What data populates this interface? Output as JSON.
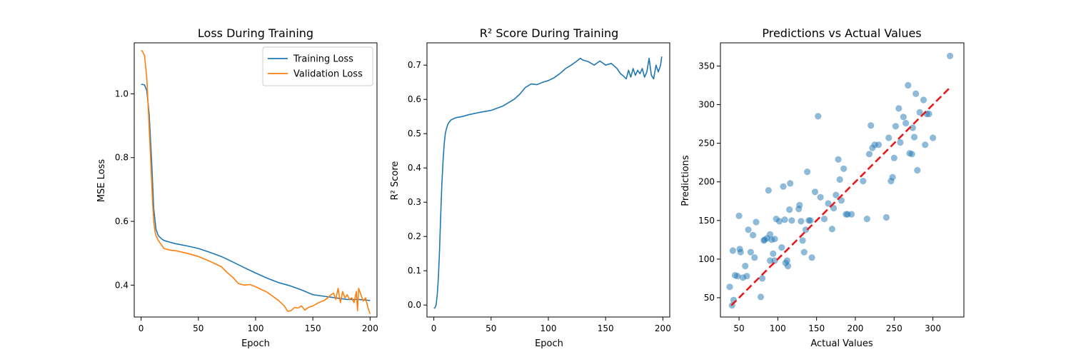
{
  "chart_data": [
    {
      "type": "line",
      "title": "Loss During Training",
      "xlabel": "Epoch",
      "ylabel": "MSE Loss",
      "xlim": [
        -6,
        206
      ],
      "ylim": [
        0.3,
        1.16
      ],
      "xticks": [
        0,
        50,
        100,
        150,
        200
      ],
      "xtick_labels": [
        "0",
        "50",
        "100",
        "150",
        "200"
      ],
      "yticks": [
        0.4,
        0.6,
        0.8,
        1.0
      ],
      "ytick_labels": [
        "0.4",
        "0.6",
        "0.8",
        "1.0"
      ],
      "grid": false,
      "legend": "top-right",
      "series": [
        {
          "name": "Training Loss",
          "color": "#1f77b4",
          "x": [
            0,
            3,
            5,
            7,
            9,
            11,
            13,
            15,
            18,
            20,
            25,
            30,
            40,
            50,
            60,
            70,
            80,
            90,
            100,
            110,
            120,
            130,
            140,
            150,
            160,
            170,
            180,
            190,
            200
          ],
          "y": [
            1.03,
            1.028,
            1.01,
            0.94,
            0.8,
            0.64,
            0.575,
            0.555,
            0.545,
            0.54,
            0.535,
            0.53,
            0.523,
            0.515,
            0.503,
            0.49,
            0.473,
            0.455,
            0.438,
            0.422,
            0.408,
            0.398,
            0.385,
            0.37,
            0.365,
            0.36,
            0.355,
            0.355,
            0.352
          ]
        },
        {
          "name": "Validation Loss",
          "color": "#ff7f0e",
          "x": [
            0,
            1,
            3,
            5,
            7,
            9,
            10,
            11,
            12,
            13,
            15,
            18,
            20,
            25,
            30,
            40,
            50,
            60,
            70,
            75,
            80,
            85,
            90,
            95,
            100,
            110,
            115,
            120,
            125,
            128,
            131,
            134,
            137,
            140,
            143,
            146,
            150,
            155,
            160,
            163,
            166,
            168,
            170,
            172,
            174,
            176,
            178,
            180,
            182,
            184,
            186,
            188,
            189,
            190,
            192,
            194,
            196,
            198,
            200
          ],
          "y": [
            1.135,
            1.135,
            1.12,
            1.05,
            0.9,
            0.74,
            0.66,
            0.6,
            0.57,
            0.555,
            0.54,
            0.525,
            0.515,
            0.51,
            0.508,
            0.5,
            0.49,
            0.475,
            0.458,
            0.44,
            0.425,
            0.405,
            0.4,
            0.402,
            0.395,
            0.378,
            0.365,
            0.352,
            0.335,
            0.318,
            0.32,
            0.33,
            0.328,
            0.335,
            0.322,
            0.33,
            0.335,
            0.345,
            0.352,
            0.36,
            0.37,
            0.375,
            0.355,
            0.39,
            0.345,
            0.38,
            0.36,
            0.37,
            0.355,
            0.36,
            0.345,
            0.38,
            0.32,
            0.39,
            0.37,
            0.35,
            0.36,
            0.33,
            0.31
          ]
        }
      ]
    },
    {
      "type": "line",
      "title": "R² Score During Training",
      "xlabel": "Epoch",
      "ylabel": "R² Score",
      "xlim": [
        -6,
        206
      ],
      "ylim": [
        -0.035,
        0.765
      ],
      "xticks": [
        0,
        50,
        100,
        150,
        200
      ],
      "xtick_labels": [
        "0",
        "50",
        "100",
        "150",
        "200"
      ],
      "yticks": [
        0.0,
        0.1,
        0.2,
        0.3,
        0.4,
        0.5,
        0.6,
        0.7
      ],
      "ytick_labels": [
        "0.0",
        "0.1",
        "0.2",
        "0.3",
        "0.4",
        "0.5",
        "0.6",
        "0.7"
      ],
      "grid": false,
      "series": [
        {
          "color": "#1f77b4",
          "x": [
            0,
            1,
            2,
            3,
            4,
            5,
            6,
            7,
            8,
            9,
            10,
            11,
            12,
            13,
            15,
            18,
            20,
            25,
            30,
            40,
            50,
            60,
            70,
            75,
            80,
            85,
            90,
            95,
            100,
            105,
            110,
            115,
            120,
            125,
            128,
            130,
            135,
            140,
            145,
            150,
            155,
            160,
            163,
            165,
            168,
            170,
            172,
            174,
            176,
            178,
            180,
            182,
            184,
            186,
            188,
            190,
            192,
            194,
            196,
            198,
            199
          ],
          "y": [
            -0.01,
            -0.008,
            0.0,
            0.03,
            0.08,
            0.16,
            0.26,
            0.35,
            0.42,
            0.47,
            0.5,
            0.515,
            0.525,
            0.532,
            0.54,
            0.545,
            0.547,
            0.55,
            0.555,
            0.562,
            0.568,
            0.58,
            0.6,
            0.615,
            0.635,
            0.645,
            0.643,
            0.65,
            0.655,
            0.663,
            0.675,
            0.69,
            0.7,
            0.712,
            0.72,
            0.715,
            0.71,
            0.7,
            0.712,
            0.7,
            0.705,
            0.69,
            0.675,
            0.67,
            0.66,
            0.685,
            0.665,
            0.69,
            0.67,
            0.685,
            0.675,
            0.69,
            0.665,
            0.68,
            0.72,
            0.67,
            0.66,
            0.7,
            0.68,
            0.7,
            0.725
          ]
        }
      ]
    },
    {
      "type": "scatter",
      "title": "Predictions vs Actual Values",
      "xlabel": "Actual Values",
      "ylabel": "Predictions",
      "xlim": [
        26,
        340
      ],
      "ylim": [
        25,
        380
      ],
      "xticks": [
        50,
        100,
        150,
        200,
        250,
        300
      ],
      "xtick_labels": [
        "50",
        "100",
        "150",
        "200",
        "250",
        "300"
      ],
      "yticks": [
        50,
        100,
        150,
        200,
        250,
        300,
        350
      ],
      "ytick_labels": [
        "50",
        "100",
        "150",
        "200",
        "250",
        "300",
        "350"
      ],
      "grid": false,
      "series": [
        {
          "color": "#1f77b4",
          "alpha": 0.5,
          "x": [
            38,
            41,
            42,
            43,
            45,
            48,
            50,
            51,
            52,
            55,
            58,
            60,
            62,
            65,
            68,
            70,
            72,
            78,
            80,
            82,
            83,
            86,
            88,
            90,
            90,
            92,
            94,
            96,
            96,
            98,
            102,
            105,
            107,
            109,
            110,
            112,
            113,
            115,
            116,
            118,
            127,
            128,
            130,
            132,
            134,
            136,
            138,
            140,
            142,
            144,
            148,
            152,
            155,
            160,
            165,
            170,
            172,
            175,
            178,
            180,
            182,
            185,
            188,
            190,
            195,
            210,
            215,
            218,
            220,
            222,
            225,
            230,
            240,
            243,
            246,
            248,
            250,
            252,
            256,
            258,
            262,
            265,
            268,
            270,
            273,
            274,
            276,
            278,
            280,
            283,
            288,
            290,
            292,
            295,
            300,
            322
          ],
          "y": [
            64,
            40,
            111,
            47,
            79,
            78,
            156,
            113,
            109,
            76,
            91,
            78,
            138,
            109,
            131,
            102,
            148,
            51,
            75,
            124,
            125,
            127,
            189,
            98,
            132,
            125,
            107,
            98,
            126,
            152,
            149,
            115,
            194,
            151,
            95,
            98,
            91,
            164,
            198,
            150,
            165,
            170,
            149,
            124,
            109,
            138,
            213,
            150,
            150,
            102,
            187,
            285,
            180,
            152,
            172,
            139,
            166,
            183,
            229,
            203,
            176,
            217,
            158,
            158,
            158,
            201,
            152,
            236,
            273,
            244,
            248,
            248,
            154,
            257,
            201,
            206,
            231,
            272,
            295,
            251,
            284,
            276,
            325,
            237,
            236,
            270,
            258,
            314,
            215,
            290,
            306,
            248,
            288,
            288,
            257,
            363
          ]
        },
        {
          "type": "line",
          "style": "dashed",
          "color": "#e41a1c",
          "x": [
            40,
            322
          ],
          "y": [
            40,
            322
          ]
        }
      ]
    }
  ]
}
